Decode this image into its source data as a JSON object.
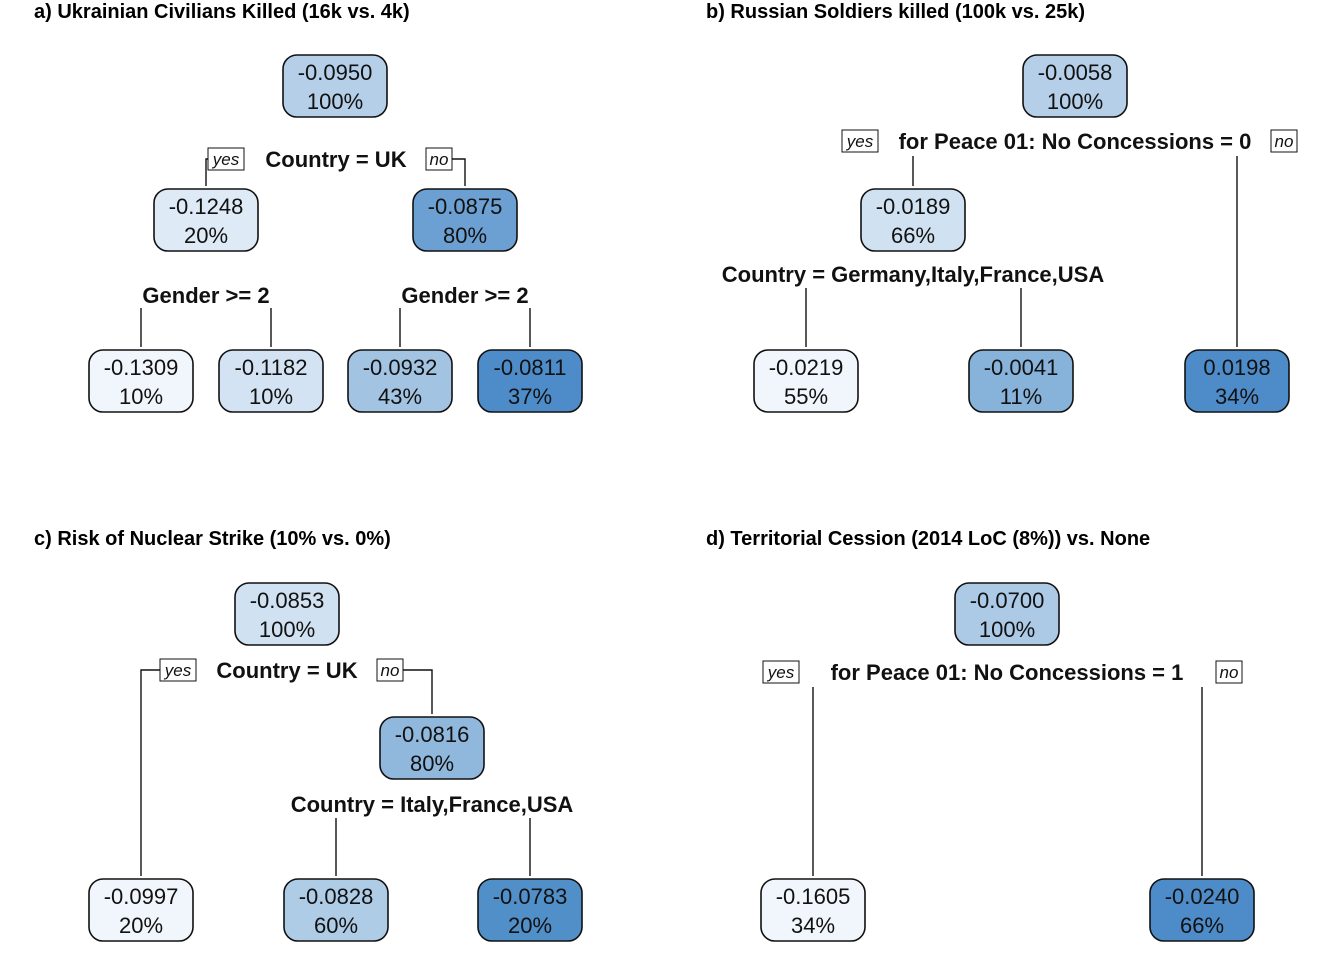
{
  "colors": {
    "lightest": "#f4f8fd",
    "darkest": "#3f83c3",
    "border": "#111111"
  },
  "yes_label": "yes",
  "no_label": "no",
  "panels": [
    {
      "title": "a) Ukrainian Civilians Killed (16k vs. 4k)",
      "nodes": [
        {
          "value": "-0.0950",
          "pct": "100%",
          "shade": 0.35
        },
        {
          "value": "-0.1248",
          "pct": "20%",
          "shade": 0.12
        },
        {
          "value": "-0.0875",
          "pct": "80%",
          "shade": 0.75
        },
        {
          "value": "-0.1309",
          "pct": "10%",
          "shade": 0.02
        },
        {
          "value": "-0.1182",
          "pct": "10%",
          "shade": 0.18
        },
        {
          "value": "-0.0932",
          "pct": "43%",
          "shade": 0.45
        },
        {
          "value": "-0.0811",
          "pct": "37%",
          "shade": 0.92
        }
      ],
      "splits": [
        {
          "label": "Country = UK",
          "yesno": true
        },
        {
          "label": "Gender >= 2",
          "yesno": false
        },
        {
          "label": "Gender >= 2",
          "yesno": false
        }
      ]
    },
    {
      "title": "b) Russian Soldiers killed (100k vs. 25k)",
      "nodes": [
        {
          "value": "-0.0058",
          "pct": "100%",
          "shade": 0.35
        },
        {
          "value": "-0.0189",
          "pct": "66%",
          "shade": 0.2
        },
        {
          "value": "-0.0219",
          "pct": "55%",
          "shade": 0.02
        },
        {
          "value": "-0.0041",
          "pct": "11%",
          "shade": 0.6
        },
        {
          "value": "0.0198",
          "pct": "34%",
          "shade": 0.92
        }
      ],
      "splits": [
        {
          "label": "for Peace 01: No Concessions = 0",
          "yesno": true
        },
        {
          "label": "Country = Germany,Italy,France,USA",
          "yesno": false
        }
      ]
    },
    {
      "title": "c) Risk of Nuclear Strike (10% vs. 0%)",
      "nodes": [
        {
          "value": "-0.0853",
          "pct": "100%",
          "shade": 0.2
        },
        {
          "value": "-0.0816",
          "pct": "80%",
          "shade": 0.55
        },
        {
          "value": "-0.0997",
          "pct": "20%",
          "shade": 0.02
        },
        {
          "value": "-0.0828",
          "pct": "60%",
          "shade": 0.38
        },
        {
          "value": "-0.0783",
          "pct": "20%",
          "shade": 0.9
        }
      ],
      "splits": [
        {
          "label": "Country = UK",
          "yesno": true
        },
        {
          "label": "Country = Italy,France,USA",
          "yesno": false
        }
      ]
    },
    {
      "title": "d) Territorial Cession (2014 LoC (8%)) vs. None",
      "nodes": [
        {
          "value": "-0.0700",
          "pct": "100%",
          "shade": 0.4
        },
        {
          "value": "-0.1605",
          "pct": "34%",
          "shade": 0.02
        },
        {
          "value": "-0.0240",
          "pct": "66%",
          "shade": 0.92
        }
      ],
      "splits": [
        {
          "label": "for Peace 01: No Concessions = 1",
          "yesno": true
        }
      ]
    }
  ]
}
